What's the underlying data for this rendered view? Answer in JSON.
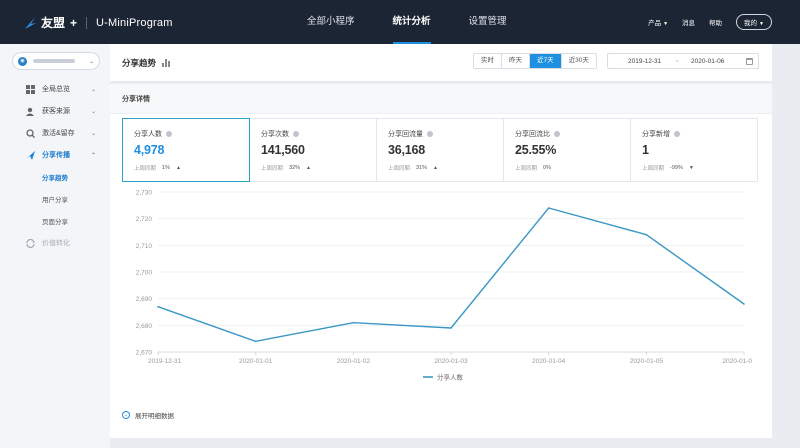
{
  "topbar": {
    "brand": "友盟",
    "brand_plus": "+",
    "product": "U-MiniProgram",
    "nav": [
      {
        "label": "全部小程序",
        "active": false
      },
      {
        "label": "统计分析",
        "active": true
      },
      {
        "label": "设置管理",
        "active": false
      }
    ],
    "right": {
      "products": "产品",
      "messages": "消息",
      "help": "帮助",
      "mine": "我的"
    }
  },
  "sidebar": {
    "items": [
      {
        "label": "全局总览",
        "icon": "grid-icon",
        "chevron": "⌄"
      },
      {
        "label": "获客来源",
        "icon": "user-source-icon",
        "chevron": "⌄"
      },
      {
        "label": "激活&留存",
        "icon": "retention-icon",
        "chevron": "⌄"
      },
      {
        "label": "分享传播",
        "icon": "share-icon",
        "chevron": "⌃"
      }
    ],
    "sub_items": [
      {
        "label": "分享趋势",
        "active": true
      },
      {
        "label": "用户分享",
        "active": false
      },
      {
        "label": "页面分享",
        "active": false
      }
    ],
    "disabled_item": {
      "label": "价值转化",
      "icon": "value-icon"
    }
  },
  "page": {
    "title": "分享趋势",
    "ranges": [
      {
        "label": "实时",
        "active": false
      },
      {
        "label": "昨天",
        "active": false
      },
      {
        "label": "近7天",
        "active": true
      },
      {
        "label": "近30天",
        "active": false
      }
    ],
    "date_start": "2019-12-31",
    "date_sep": "~",
    "date_end": "2020-01-06"
  },
  "card": {
    "title": "分享详情",
    "metrics": [
      {
        "label": "分享人数",
        "value": "4,978",
        "compare_label": "上周同期",
        "compare_pct": "1%",
        "trend": "▲",
        "selected": true
      },
      {
        "label": "分享次数",
        "value": "141,560",
        "compare_label": "上周同期",
        "compare_pct": "32%",
        "trend": "▲",
        "selected": false
      },
      {
        "label": "分享回流量",
        "value": "36,168",
        "compare_label": "上周同期",
        "compare_pct": "31%",
        "trend": "▲",
        "selected": false
      },
      {
        "label": "分享回流比",
        "value": "25.55%",
        "compare_label": "上周同期",
        "compare_pct": "0%",
        "trend": "",
        "selected": false
      },
      {
        "label": "分享新增",
        "value": "1",
        "compare_label": "上周同期",
        "compare_pct": "-99%",
        "trend": "▼",
        "selected": false
      }
    ],
    "expand_label": "展开明细数据"
  },
  "chart_data": {
    "type": "line",
    "x": [
      "2019-12-31",
      "2020-01-01",
      "2020-01-02",
      "2020-01-03",
      "2020-01-04",
      "2020-01-05",
      "2020-01-0"
    ],
    "series": [
      {
        "name": "分享人数",
        "values": [
          2687,
          2674,
          2681,
          2679,
          2724,
          2714,
          2688
        ],
        "color": "#3a97c4"
      }
    ],
    "yticks": [
      "2,730",
      "2,720",
      "2,710",
      "2,700",
      "2,690",
      "2,680",
      "2,670"
    ],
    "ylim": [
      2670,
      2730
    ],
    "grid": true,
    "legend": "bottom"
  }
}
